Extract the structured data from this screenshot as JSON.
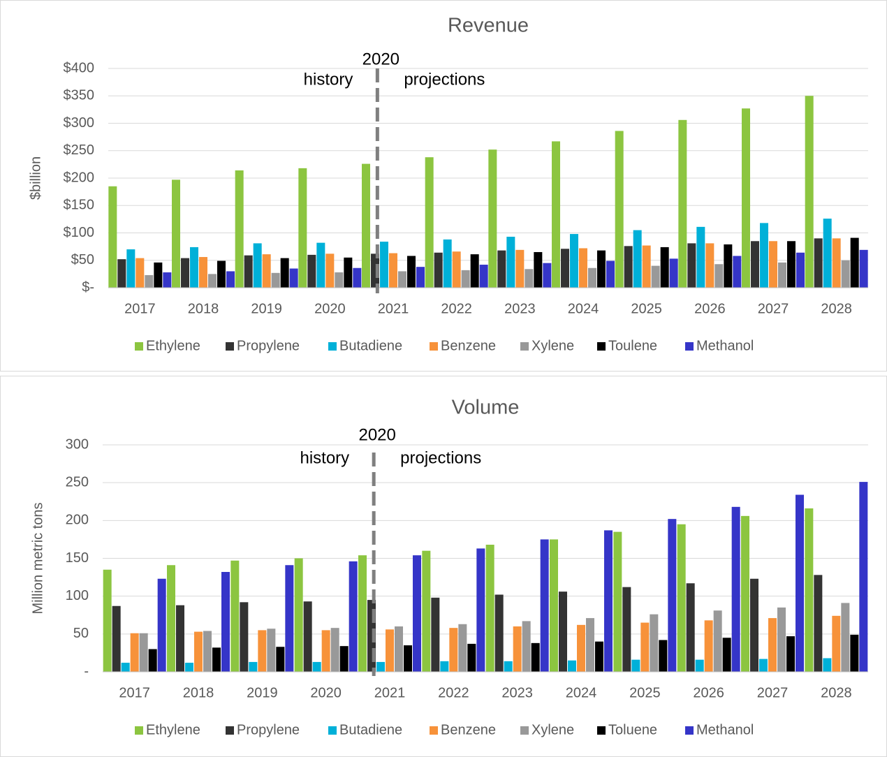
{
  "chart_data": [
    {
      "type": "bar",
      "title": "Revenue",
      "y_label": "$billion",
      "annotations": [
        "2020",
        "history",
        "projections"
      ],
      "categories": [
        "2017",
        "2018",
        "2019",
        "2020",
        "2021",
        "2022",
        "2023",
        "2024",
        "2025",
        "2026",
        "2027",
        "2028"
      ],
      "series": [
        {
          "name": "Ethylene",
          "color": "#8cc540",
          "values": [
            185,
            197,
            214,
            218,
            226,
            238,
            252,
            267,
            286,
            306,
            327,
            350
          ]
        },
        {
          "name": "Propylene",
          "color": "#333333",
          "values": [
            52,
            54,
            59,
            60,
            62,
            64,
            68,
            71,
            76,
            81,
            85,
            90
          ]
        },
        {
          "name": "Butadiene",
          "color": "#00b0d8",
          "values": [
            70,
            74,
            81,
            82,
            84,
            88,
            93,
            98,
            105,
            111,
            118,
            126
          ]
        },
        {
          "name": "Benzene",
          "color": "#f7923a",
          "values": [
            54,
            56,
            61,
            62,
            63,
            66,
            69,
            72,
            77,
            81,
            85,
            90
          ]
        },
        {
          "name": "Xylene",
          "color": "#999999",
          "values": [
            23,
            25,
            27,
            28,
            30,
            32,
            34,
            36,
            40,
            43,
            46,
            50
          ]
        },
        {
          "name": "Toulene",
          "color": "#000000",
          "values": [
            46,
            49,
            54,
            55,
            58,
            61,
            65,
            68,
            74,
            79,
            85,
            91
          ]
        },
        {
          "name": "Methanol",
          "color": "#3535c8",
          "values": [
            28,
            30,
            35,
            36,
            38,
            42,
            45,
            49,
            53,
            58,
            64,
            69
          ]
        }
      ],
      "ylim": [
        0,
        400
      ],
      "yticks": [
        {
          "value": 0,
          "label": "$-"
        },
        {
          "value": 50,
          "label": "$50"
        },
        {
          "value": 100,
          "label": "$100"
        },
        {
          "value": 150,
          "label": "$150"
        },
        {
          "value": 200,
          "label": "$200"
        },
        {
          "value": 250,
          "label": "$250"
        },
        {
          "value": 300,
          "label": "$300"
        },
        {
          "value": 350,
          "label": "$350"
        },
        {
          "value": 400,
          "label": "$400"
        }
      ],
      "grid": true,
      "legend": "bottom"
    },
    {
      "type": "bar",
      "title": "Volume",
      "y_label": "Million metric tons",
      "annotations": [
        "2020",
        "history",
        "projections"
      ],
      "categories": [
        "2017",
        "2018",
        "2019",
        "2020",
        "2021",
        "2022",
        "2023",
        "2024",
        "2025",
        "2026",
        "2027",
        "2028"
      ],
      "series": [
        {
          "name": "Ethylene",
          "color": "#8cc540",
          "values": [
            135,
            141,
            147,
            150,
            154,
            160,
            168,
            175,
            185,
            195,
            206,
            216
          ]
        },
        {
          "name": "Propylene",
          "color": "#333333",
          "values": [
            87,
            88,
            92,
            93,
            95,
            98,
            102,
            106,
            112,
            117,
            123,
            128
          ]
        },
        {
          "name": "Butadiene",
          "color": "#00b0d8",
          "values": [
            12,
            12,
            13,
            13,
            13,
            14,
            14,
            15,
            16,
            16,
            17,
            18
          ]
        },
        {
          "name": "Benzene",
          "color": "#f7923a",
          "values": [
            51,
            53,
            55,
            55,
            56,
            58,
            60,
            62,
            65,
            68,
            71,
            74
          ]
        },
        {
          "name": "Xylene",
          "color": "#999999",
          "values": [
            51,
            54,
            57,
            58,
            60,
            63,
            67,
            71,
            76,
            81,
            85,
            91
          ]
        },
        {
          "name": "Toluene",
          "color": "#000000",
          "values": [
            30,
            32,
            33,
            34,
            35,
            37,
            38,
            40,
            42,
            45,
            47,
            49
          ]
        },
        {
          "name": "Methanol",
          "color": "#3535c8",
          "values": [
            123,
            132,
            141,
            146,
            154,
            163,
            175,
            187,
            202,
            218,
            234,
            251
          ]
        }
      ],
      "ylim": [
        0,
        300
      ],
      "yticks": [
        {
          "value": 0,
          "label": "-"
        },
        50,
        100,
        150,
        200,
        250,
        300
      ],
      "grid": true,
      "legend": "bottom"
    }
  ]
}
